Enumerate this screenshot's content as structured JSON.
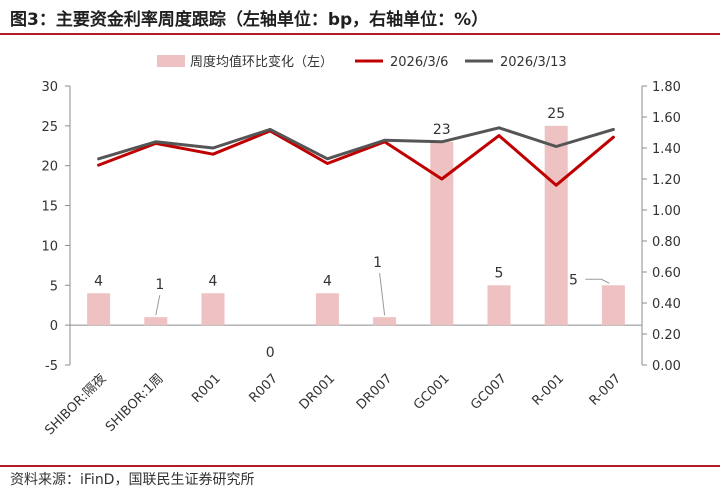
{
  "title": "图3：主要资金利率周度跟踪（左轴单位：bp，右轴单位：%）",
  "source": "资料来源：iFinD，国联民生证券研究所",
  "chart_data": {
    "type": "bar+line",
    "categories": [
      "SHIBOR:隔夜",
      "SHIBOR:1周",
      "R001",
      "R007",
      "DR001",
      "DR007",
      "GC001",
      "GC007",
      "R-001",
      "R-007"
    ],
    "bar_series": {
      "name": "周度均值环比变化（左）",
      "axis": "left",
      "values": [
        4,
        1,
        4,
        0,
        4,
        1,
        23,
        5,
        25,
        5
      ],
      "labels": [
        "4",
        "1",
        "4",
        "0",
        "4",
        "1",
        "23",
        "5",
        "25",
        "5"
      ],
      "color": "#eec2c3"
    },
    "line_series": [
      {
        "name": "2026/3/6",
        "axis": "right",
        "color": "#c00000",
        "values": [
          1.29,
          1.43,
          1.36,
          1.51,
          1.3,
          1.44,
          1.2,
          1.48,
          1.16,
          1.47
        ]
      },
      {
        "name": "2026/3/13",
        "axis": "right",
        "color": "#555555",
        "values": [
          1.33,
          1.44,
          1.4,
          1.52,
          1.33,
          1.45,
          1.44,
          1.53,
          1.41,
          1.52
        ]
      }
    ],
    "left_axis": {
      "min": -5,
      "max": 30,
      "step": 5,
      "ticks": [
        "-5",
        "0",
        "5",
        "10",
        "15",
        "20",
        "25",
        "30"
      ]
    },
    "right_axis": {
      "min": 0.0,
      "max": 1.8,
      "step": 0.2,
      "ticks": [
        "0.00",
        "0.20",
        "0.40",
        "0.60",
        "0.80",
        "1.00",
        "1.20",
        "1.40",
        "1.60",
        "1.80"
      ]
    },
    "legend": [
      "周度均值环比变化（左）",
      "2026/3/6",
      "2026/3/13"
    ]
  }
}
